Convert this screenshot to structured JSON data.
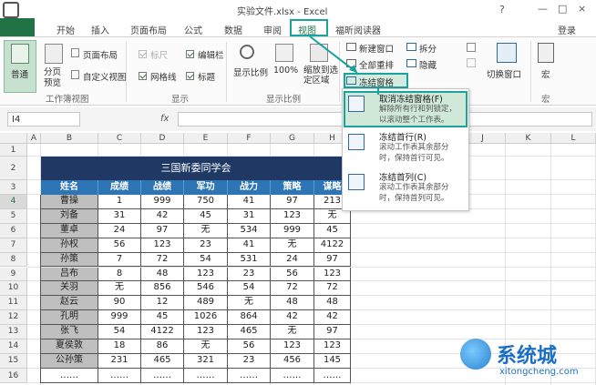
{
  "title_bar": {
    "title": "实验文件.xlsx - Excel",
    "help": "?",
    "login": "登录",
    "controls": [
      "—",
      "□",
      "×"
    ]
  },
  "tabs": [
    "开始",
    "插入",
    "页面布局",
    "公式",
    "数据",
    "审阅",
    "视图",
    "福昕阅读器"
  ],
  "ribbon": {
    "workbook_views": {
      "normal": "普通",
      "page_break": "分页预览",
      "page_layout": "页面布局",
      "custom": "自定义视图",
      "label": "工作簿视图"
    },
    "show": {
      "ruler": "标尺",
      "formula_bar": "编辑栏",
      "gridlines": "网格线",
      "headings": "标题",
      "label": "显示"
    },
    "zoom": {
      "zoom": "显示比例",
      "hundred": "100%",
      "selection": "缩放到选定区域",
      "label": "显示比例"
    },
    "window": {
      "new": "新建窗口",
      "arrange": "全部重排",
      "freeze": "冻结窗格",
      "split": "拆分",
      "hide": "隐藏",
      "switch": "切换窗口"
    },
    "macros": {
      "macros": "宏",
      "label": "宏"
    }
  },
  "freeze_menu": [
    {
      "title": "取消冻结窗格(F)",
      "desc": [
        "解除所有行和列锁定，",
        "以滚动整个工作表。"
      ]
    },
    {
      "title": "冻结首行(R)",
      "desc": [
        "滚动工作表其余部分",
        "时，保持首行可见。"
      ]
    },
    {
      "title": "冻结首列(C)",
      "desc": [
        "滚动工作表其余部分",
        "时，保持首列可见。"
      ]
    }
  ],
  "formula_bar": {
    "name_box": "I4",
    "fx": "fx"
  },
  "sheet": {
    "columns": [
      "A",
      "B",
      "C",
      "D",
      "E",
      "F",
      "G",
      "H",
      "J",
      "K",
      "L"
    ],
    "rows": [
      1,
      2,
      3,
      4,
      5,
      6,
      7,
      8,
      9,
      10,
      11,
      12,
      13,
      14,
      15,
      16
    ],
    "table": {
      "title": "三国新委同学会",
      "headers": [
        "姓名",
        "成绩",
        "战绩",
        "军功",
        "战力",
        "策略",
        "谋略"
      ],
      "rows": [
        [
          "曹操",
          1,
          999,
          750,
          41,
          97,
          213
        ],
        [
          "刘备",
          31,
          42,
          45,
          31,
          123,
          "无"
        ],
        [
          "董卓",
          24,
          97,
          "无",
          534,
          999,
          45
        ],
        [
          "孙权",
          56,
          123,
          23,
          41,
          "无",
          4122
        ],
        [
          "孙策",
          7,
          72,
          54,
          531,
          24,
          97
        ],
        [
          "吕布",
          8,
          48,
          123,
          23,
          56,
          123
        ],
        [
          "关羽",
          "无",
          856,
          546,
          54,
          72,
          72
        ],
        [
          "赵云",
          90,
          12,
          489,
          "无",
          48,
          48
        ],
        [
          "孔明",
          999,
          45,
          1026,
          864,
          42,
          42
        ],
        [
          "张飞",
          54,
          4122,
          123,
          465,
          "无",
          97
        ],
        [
          "夏侯敦",
          18,
          86,
          "无",
          56,
          123,
          123
        ],
        [
          "公孙策",
          231,
          465,
          321,
          23,
          456,
          145
        ],
        [
          "……",
          "……",
          "……",
          "……",
          "……",
          "……",
          "……"
        ]
      ]
    }
  },
  "watermark": {
    "brand": "系统城",
    "url": "xitongcheng.com"
  }
}
